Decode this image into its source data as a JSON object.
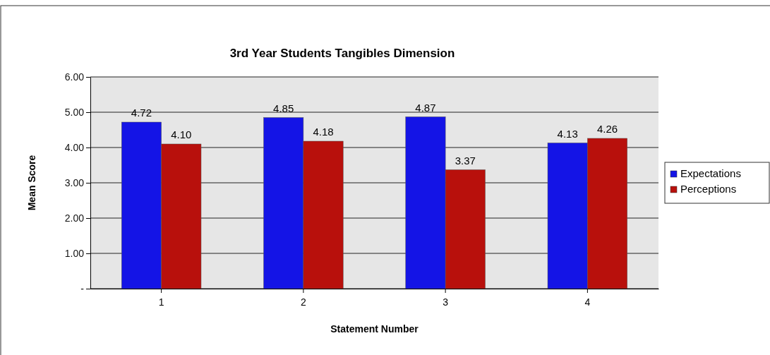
{
  "chart_data": {
    "type": "bar",
    "title": "3rd Year Students Tangibles Dimension",
    "xlabel": "Statement Number",
    "ylabel": "Mean Score",
    "categories": [
      "1",
      "2",
      "3",
      "4"
    ],
    "series": [
      {
        "name": "Expectations",
        "color": "#1414e6",
        "values": [
          4.72,
          4.85,
          4.87,
          4.13
        ],
        "value_labels": [
          "4.72",
          "4.85",
          "4.87",
          "4.13"
        ]
      },
      {
        "name": "Perceptions",
        "color": "#b8100c",
        "values": [
          4.1,
          4.18,
          3.37,
          4.26
        ],
        "value_labels": [
          "4.10",
          "4.18",
          "3.37",
          "4.26"
        ]
      }
    ],
    "ylim": [
      0,
      6
    ],
    "yticks": [
      {
        "value": 0,
        "label": "-"
      },
      {
        "value": 1,
        "label": "1.00"
      },
      {
        "value": 2,
        "label": "2.00"
      },
      {
        "value": 3,
        "label": "3.00"
      },
      {
        "value": 4,
        "label": "4.00"
      },
      {
        "value": 5,
        "label": "5.00"
      },
      {
        "value": 6,
        "label": "6.00"
      }
    ],
    "grid": "y",
    "legend": "right"
  }
}
